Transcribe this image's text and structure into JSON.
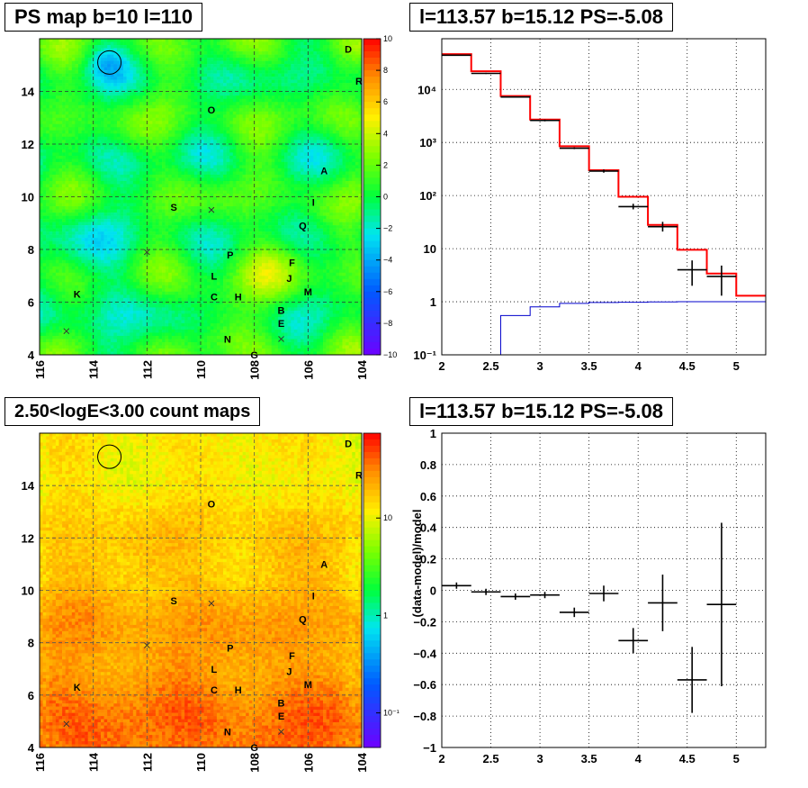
{
  "colors": {
    "map_low": "#4b00ff",
    "map_high": "#ff0000",
    "model_line": "#ff0000",
    "bkg_line": "#0000cc",
    "data": "#000000"
  },
  "chart_data": [
    {
      "type": "heatmap",
      "title": "PS map b=10 l=110",
      "x_ticks": [
        "116",
        "114",
        "112",
        "110",
        "108",
        "106",
        "104"
      ],
      "y_ticks": [
        "4",
        "6",
        "8",
        "10",
        "12",
        "14"
      ],
      "xlim": [
        116,
        104
      ],
      "ylim": [
        4,
        16
      ],
      "colorbar_ticks": [
        "10",
        "8",
        "6",
        "4",
        "2",
        "0",
        "−2",
        "−4",
        "−6",
        "−8",
        "−10"
      ],
      "colorbar_range": [
        -10,
        10
      ],
      "sources": [
        {
          "label": "D",
          "l": 104.5,
          "b": 15.6
        },
        {
          "label": "R",
          "l": 104.1,
          "b": 14.4
        },
        {
          "label": "O",
          "l": 109.6,
          "b": 13.3
        },
        {
          "label": "A",
          "l": 105.4,
          "b": 11.0
        },
        {
          "label": "I",
          "l": 105.8,
          "b": 9.8
        },
        {
          "label": "S",
          "l": 111.0,
          "b": 9.6
        },
        {
          "label": "Q",
          "l": 106.2,
          "b": 8.9
        },
        {
          "label": "P",
          "l": 108.9,
          "b": 7.8
        },
        {
          "label": "F",
          "l": 106.6,
          "b": 7.5
        },
        {
          "label": "L",
          "l": 109.5,
          "b": 7.0
        },
        {
          "label": "J",
          "l": 106.7,
          "b": 6.9
        },
        {
          "label": "M",
          "l": 106.0,
          "b": 6.4
        },
        {
          "label": "K",
          "l": 114.6,
          "b": 6.3
        },
        {
          "label": "C",
          "l": 109.5,
          "b": 6.2
        },
        {
          "label": "H",
          "l": 108.6,
          "b": 6.2
        },
        {
          "label": "B",
          "l": 107.0,
          "b": 5.7
        },
        {
          "label": "E",
          "l": 107.0,
          "b": 5.2
        },
        {
          "label": "N",
          "l": 109.0,
          "b": 4.6
        },
        {
          "label": "G",
          "l": 108.0,
          "b": 4.0
        }
      ],
      "crosses": [
        [
          112.0,
          7.9
        ],
        [
          109.6,
          9.5
        ],
        [
          115.0,
          4.9
        ],
        [
          107.0,
          4.6
        ]
      ],
      "circle": {
        "l": 113.4,
        "b": 15.1
      }
    },
    {
      "type": "line",
      "title": "l=113.57 b=15.12 PS=-5.08",
      "log_y": true,
      "x_ticks": [
        "2",
        "2.5",
        "3",
        "3.5",
        "4",
        "4.5",
        "5"
      ],
      "y_ticks": [
        "10⁻¹",
        "1",
        "10",
        "10²",
        "10³",
        "10⁴"
      ],
      "xlim": [
        2,
        5.3
      ],
      "ylim": [
        0.1,
        90000
      ],
      "bin_edges": [
        2.0,
        2.3,
        2.6,
        2.9,
        3.2,
        3.5,
        3.8,
        4.1,
        4.4,
        4.7,
        5.0,
        5.3
      ],
      "series": [
        {
          "values": [
            46000,
            22000,
            7500,
            2700,
            850,
            300,
            95,
            28,
            9.5,
            3.4,
            1.3
          ]
        },
        {
          "values": [
            0.1,
            0.1,
            0.55,
            0.8,
            0.93,
            0.97,
            0.98,
            0.99,
            1.0,
            1.0,
            1.0
          ]
        }
      ],
      "data_points": [
        {
          "x": 2.15,
          "y": 44000,
          "xerr": 0.15,
          "ylo": 43000,
          "yhi": 45000
        },
        {
          "x": 2.45,
          "y": 20000,
          "xerr": 0.15,
          "ylo": 19500,
          "yhi": 20500
        },
        {
          "x": 2.75,
          "y": 7200,
          "xerr": 0.15,
          "ylo": 7000,
          "yhi": 7400
        },
        {
          "x": 3.05,
          "y": 2600,
          "xerr": 0.15,
          "ylo": 2500,
          "yhi": 2700
        },
        {
          "x": 3.35,
          "y": 780,
          "xerr": 0.15,
          "ylo": 750,
          "yhi": 810
        },
        {
          "x": 3.65,
          "y": 290,
          "xerr": 0.15,
          "ylo": 270,
          "yhi": 310
        },
        {
          "x": 3.95,
          "y": 62,
          "xerr": 0.15,
          "ylo": 55,
          "yhi": 70
        },
        {
          "x": 4.25,
          "y": 26,
          "xerr": 0.15,
          "ylo": 21,
          "yhi": 32
        },
        {
          "x": 4.55,
          "y": 4.0,
          "xerr": 0.15,
          "ylo": 2.0,
          "yhi": 6.0
        },
        {
          "x": 4.85,
          "y": 3.0,
          "xerr": 0.15,
          "ylo": 1.3,
          "yhi": 4.8
        }
      ]
    },
    {
      "type": "heatmap",
      "title": "2.50<logE<3.00 count maps",
      "x_ticks": [
        "116",
        "114",
        "112",
        "110",
        "108",
        "106",
        "104"
      ],
      "y_ticks": [
        "4",
        "6",
        "8",
        "10",
        "12",
        "14"
      ],
      "xlim": [
        116,
        104
      ],
      "ylim": [
        4,
        16
      ],
      "colorbar_ticks": [
        "10",
        "1",
        "10⁻¹"
      ],
      "colorbar_range_log": [
        0.05,
        100
      ]
    },
    {
      "type": "scatter",
      "title": "l=113.57 b=15.12 PS=-5.08",
      "ylabel": "(data-model)/model",
      "x_ticks": [
        "2",
        "2.5",
        "3",
        "3.5",
        "4",
        "4.5",
        "5"
      ],
      "y_ticks": [
        "−1",
        "−0.8",
        "−0.6",
        "−0.4",
        "−0.2",
        "0",
        "0.2",
        "0.4",
        "0.6",
        "0.8",
        "1"
      ],
      "xlim": [
        2,
        5.3
      ],
      "ylim": [
        -1,
        1
      ],
      "data_points": [
        {
          "x": 2.15,
          "y": 0.03,
          "xerr": 0.15,
          "yerr": 0.02
        },
        {
          "x": 2.45,
          "y": -0.01,
          "xerr": 0.15,
          "yerr": 0.02
        },
        {
          "x": 2.75,
          "y": -0.04,
          "xerr": 0.15,
          "yerr": 0.02
        },
        {
          "x": 3.05,
          "y": -0.03,
          "xerr": 0.15,
          "yerr": 0.02
        },
        {
          "x": 3.35,
          "y": -0.14,
          "xerr": 0.15,
          "yerr": 0.03
        },
        {
          "x": 3.65,
          "y": -0.02,
          "xerr": 0.15,
          "yerr": 0.05
        },
        {
          "x": 3.95,
          "y": -0.32,
          "xerr": 0.15,
          "yerr": 0.08
        },
        {
          "x": 4.25,
          "y": -0.08,
          "xerr": 0.15,
          "yerr": 0.18
        },
        {
          "x": 4.55,
          "y": -0.57,
          "xerr": 0.15,
          "yerr": 0.21
        },
        {
          "x": 4.85,
          "y": -0.09,
          "xerr": 0.15,
          "yerr": 0.52
        }
      ]
    }
  ]
}
